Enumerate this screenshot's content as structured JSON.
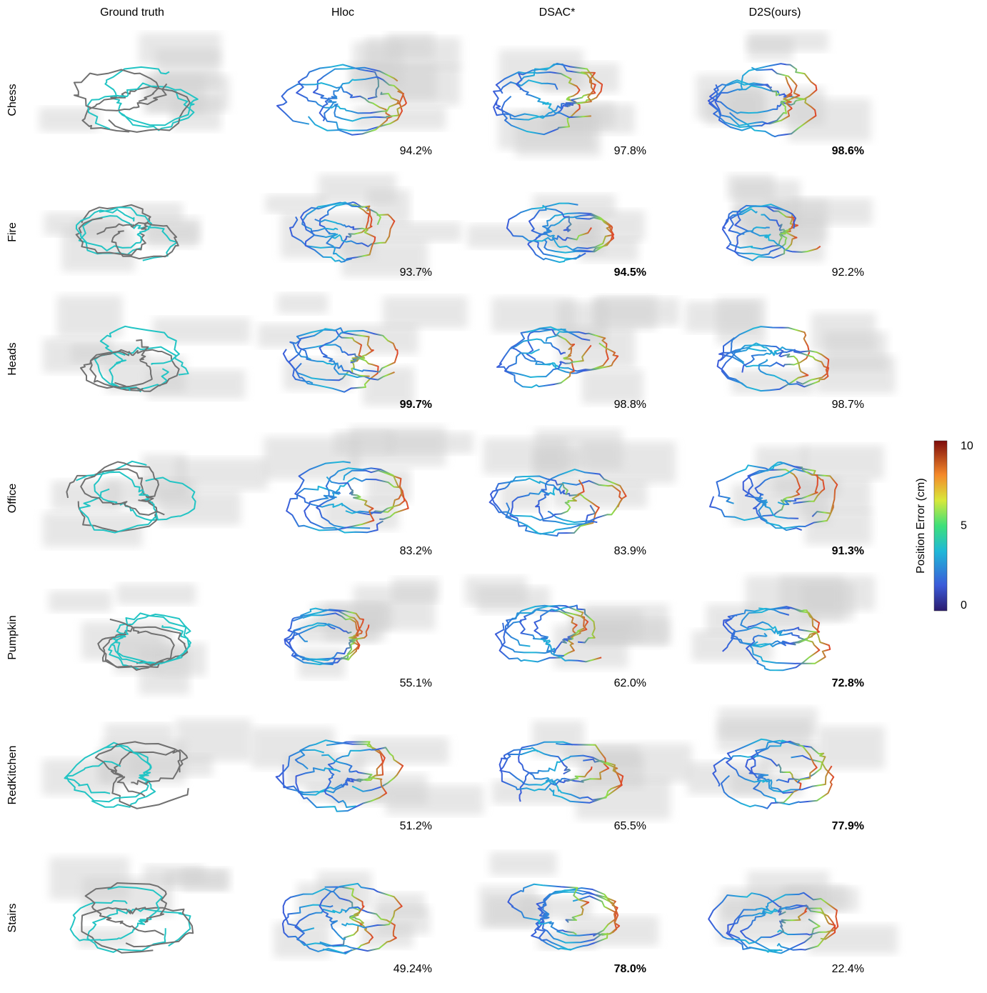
{
  "columns": [
    "Ground truth",
    "Hloc",
    "DSAC*",
    "D2S(ours)"
  ],
  "rows": [
    {
      "label": "Chess",
      "scores": [
        "94.2%",
        "97.8%",
        "98.6%"
      ],
      "best": 2
    },
    {
      "label": "Fire",
      "scores": [
        "93.7%",
        "94.5%",
        "92.2%"
      ],
      "best": 1
    },
    {
      "label": "Heads",
      "scores": [
        "99.7%",
        "98.8%",
        "98.7%"
      ],
      "best": 0
    },
    {
      "label": "Office",
      "scores": [
        "83.2%",
        "83.9%",
        "91.3%"
      ],
      "best": 2
    },
    {
      "label": "Pumpkin",
      "scores": [
        "55.1%",
        "62.0%",
        "72.8%"
      ],
      "best": 2
    },
    {
      "label": "RedKitchen",
      "scores": [
        "51.2%",
        "65.5%",
        "77.9%"
      ],
      "best": 2
    },
    {
      "label": "Stairs",
      "scores": [
        "49.24%",
        "78.0%",
        "22.4%"
      ],
      "best": 1
    }
  ],
  "colorbar": {
    "label": "Position Error (cm)",
    "range": [
      0,
      10
    ],
    "ticks": [
      0,
      5,
      10
    ]
  }
}
